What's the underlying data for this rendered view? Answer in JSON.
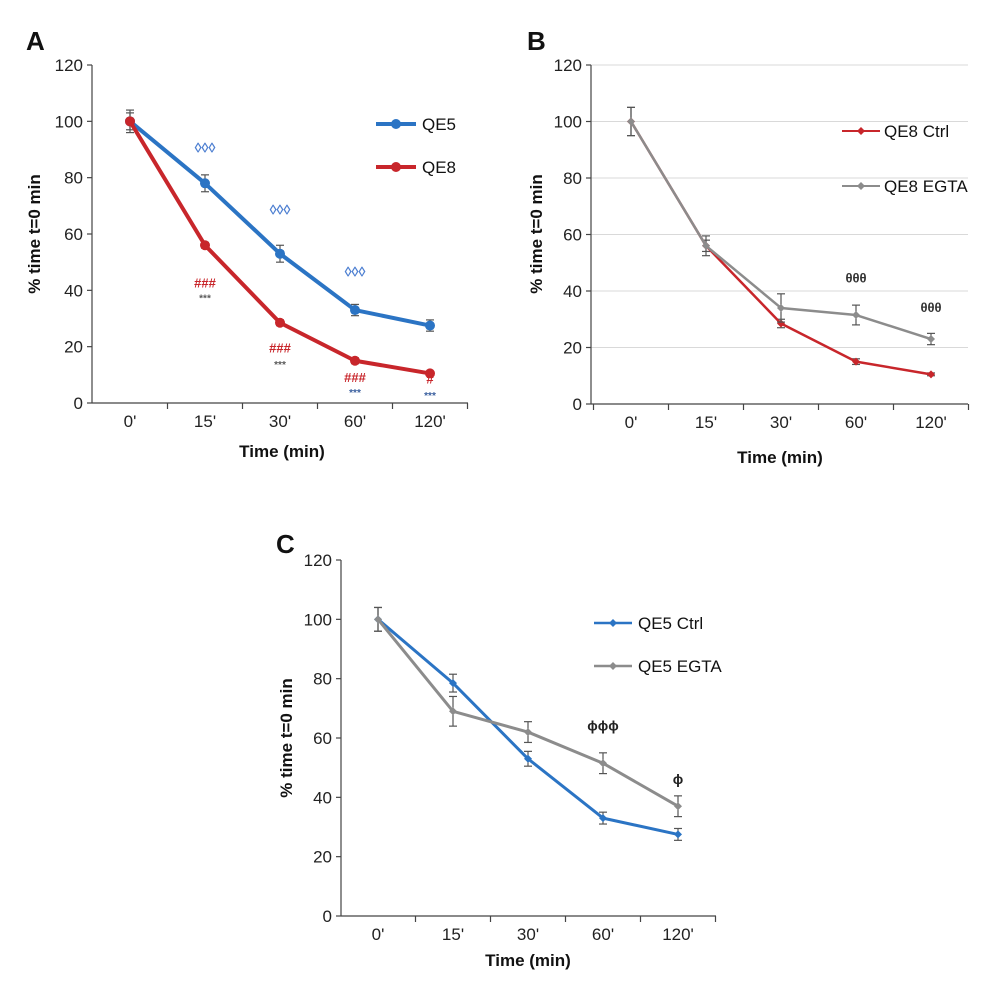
{
  "chart_data": [
    {
      "panel": "A",
      "type": "line",
      "categories": [
        "0'",
        "15'",
        "30'",
        "60'",
        "120'"
      ],
      "xlabel": "Time (min)",
      "ylabel": "% time t=0 min",
      "ylim": [
        0,
        120
      ],
      "yticks": [
        0,
        20,
        40,
        60,
        80,
        100,
        120
      ],
      "grid": false,
      "legend_position": "top-right",
      "series": [
        {
          "name": "QE5",
          "color": "#2b74c4",
          "marker": "circle",
          "values": [
            100,
            78,
            53,
            33,
            27.5
          ],
          "errors": [
            4,
            3,
            3,
            2,
            2
          ]
        },
        {
          "name": "QE8",
          "color": "#c8262b",
          "marker": "circle",
          "values": [
            100,
            56,
            28.5,
            15,
            10.5
          ],
          "errors": [
            3,
            1,
            1,
            1,
            0.5
          ]
        }
      ],
      "annotations": [
        {
          "text": "◊◊◊",
          "category": "15'",
          "y": 89,
          "color": "#4d7fd1",
          "size": 14
        },
        {
          "text": "◊◊◊",
          "category": "30'",
          "y": 67,
          "color": "#4d7fd1",
          "size": 14
        },
        {
          "text": "◊◊◊",
          "category": "60'",
          "y": 45,
          "color": "#4d7fd1",
          "size": 14
        },
        {
          "text": "###",
          "category": "15'",
          "y": 41,
          "color": "#c8262b",
          "size": 13
        },
        {
          "text": "***",
          "category": "15'",
          "y": 36,
          "color": "#5a5a5a",
          "size": 10
        },
        {
          "text": "###",
          "category": "30'",
          "y": 18,
          "color": "#c8262b",
          "size": 13
        },
        {
          "text": "***",
          "category": "30'",
          "y": 12.5,
          "color": "#5a5a5a",
          "size": 10
        },
        {
          "text": "###",
          "category": "60'",
          "y": 7.5,
          "color": "#c8262b",
          "size": 13
        },
        {
          "text": "***",
          "category": "60'",
          "y": 2.5,
          "color": "#3a5f9e",
          "size": 10
        },
        {
          "text": "#",
          "category": "120'",
          "y": 7,
          "color": "#c8262b",
          "size": 13
        },
        {
          "text": "***",
          "category": "120'",
          "y": 1.5,
          "color": "#3a5f9e",
          "size": 10
        }
      ]
    },
    {
      "panel": "B",
      "type": "line",
      "categories": [
        "0'",
        "15'",
        "30'",
        "60'",
        "120'"
      ],
      "xlabel": "Time (min)",
      "ylabel": "% time t=0 min",
      "ylim": [
        0,
        120
      ],
      "yticks": [
        0,
        20,
        40,
        60,
        80,
        100,
        120
      ],
      "grid": true,
      "legend_position": "top-right",
      "series": [
        {
          "name": "QE8 Ctrl",
          "color": "#c8262b",
          "marker": "diamond",
          "values": [
            100,
            56,
            28.5,
            15,
            10.5
          ],
          "errors": [
            5,
            2,
            1.5,
            1,
            0.5
          ]
        },
        {
          "name": "QE8 EGTA",
          "color": "#8c8c8c",
          "marker": "diamond",
          "values": [
            100,
            56,
            34,
            31.5,
            23
          ],
          "errors": [
            5,
            3.5,
            5,
            3.5,
            2
          ]
        }
      ],
      "annotations": [
        {
          "text": "θθθ",
          "category": "60'",
          "y": 43,
          "color": "#333333",
          "size": 13
        },
        {
          "text": "θθθ",
          "category": "120'",
          "y": 32.5,
          "color": "#333333",
          "size": 13
        }
      ]
    },
    {
      "panel": "C",
      "type": "line",
      "categories": [
        "0'",
        "15'",
        "30'",
        "60'",
        "120'"
      ],
      "xlabel": "Time (min)",
      "ylabel": "% time t=0 min",
      "ylim": [
        0,
        120
      ],
      "yticks": [
        0,
        20,
        40,
        60,
        80,
        100,
        120
      ],
      "grid": false,
      "legend_position": "top-right",
      "series": [
        {
          "name": "QE5 Ctrl",
          "color": "#2b74c4",
          "marker": "diamond",
          "values": [
            100,
            78.5,
            53,
            33,
            27.5
          ],
          "errors": [
            4,
            3,
            2.5,
            2,
            2
          ]
        },
        {
          "name": "QE5 EGTA",
          "color": "#8c8c8c",
          "marker": "diamond",
          "values": [
            100,
            69,
            62,
            51.5,
            37
          ],
          "errors": [
            4,
            5,
            3.5,
            3.5,
            3.5
          ]
        }
      ],
      "annotations": [
        {
          "text": "ϕϕϕ",
          "category": "60'",
          "y": 62.5,
          "color": "#222222",
          "size": 14
        },
        {
          "text": "ϕ",
          "category": "120'",
          "y": 44.5,
          "color": "#222222",
          "size": 14
        }
      ]
    }
  ]
}
